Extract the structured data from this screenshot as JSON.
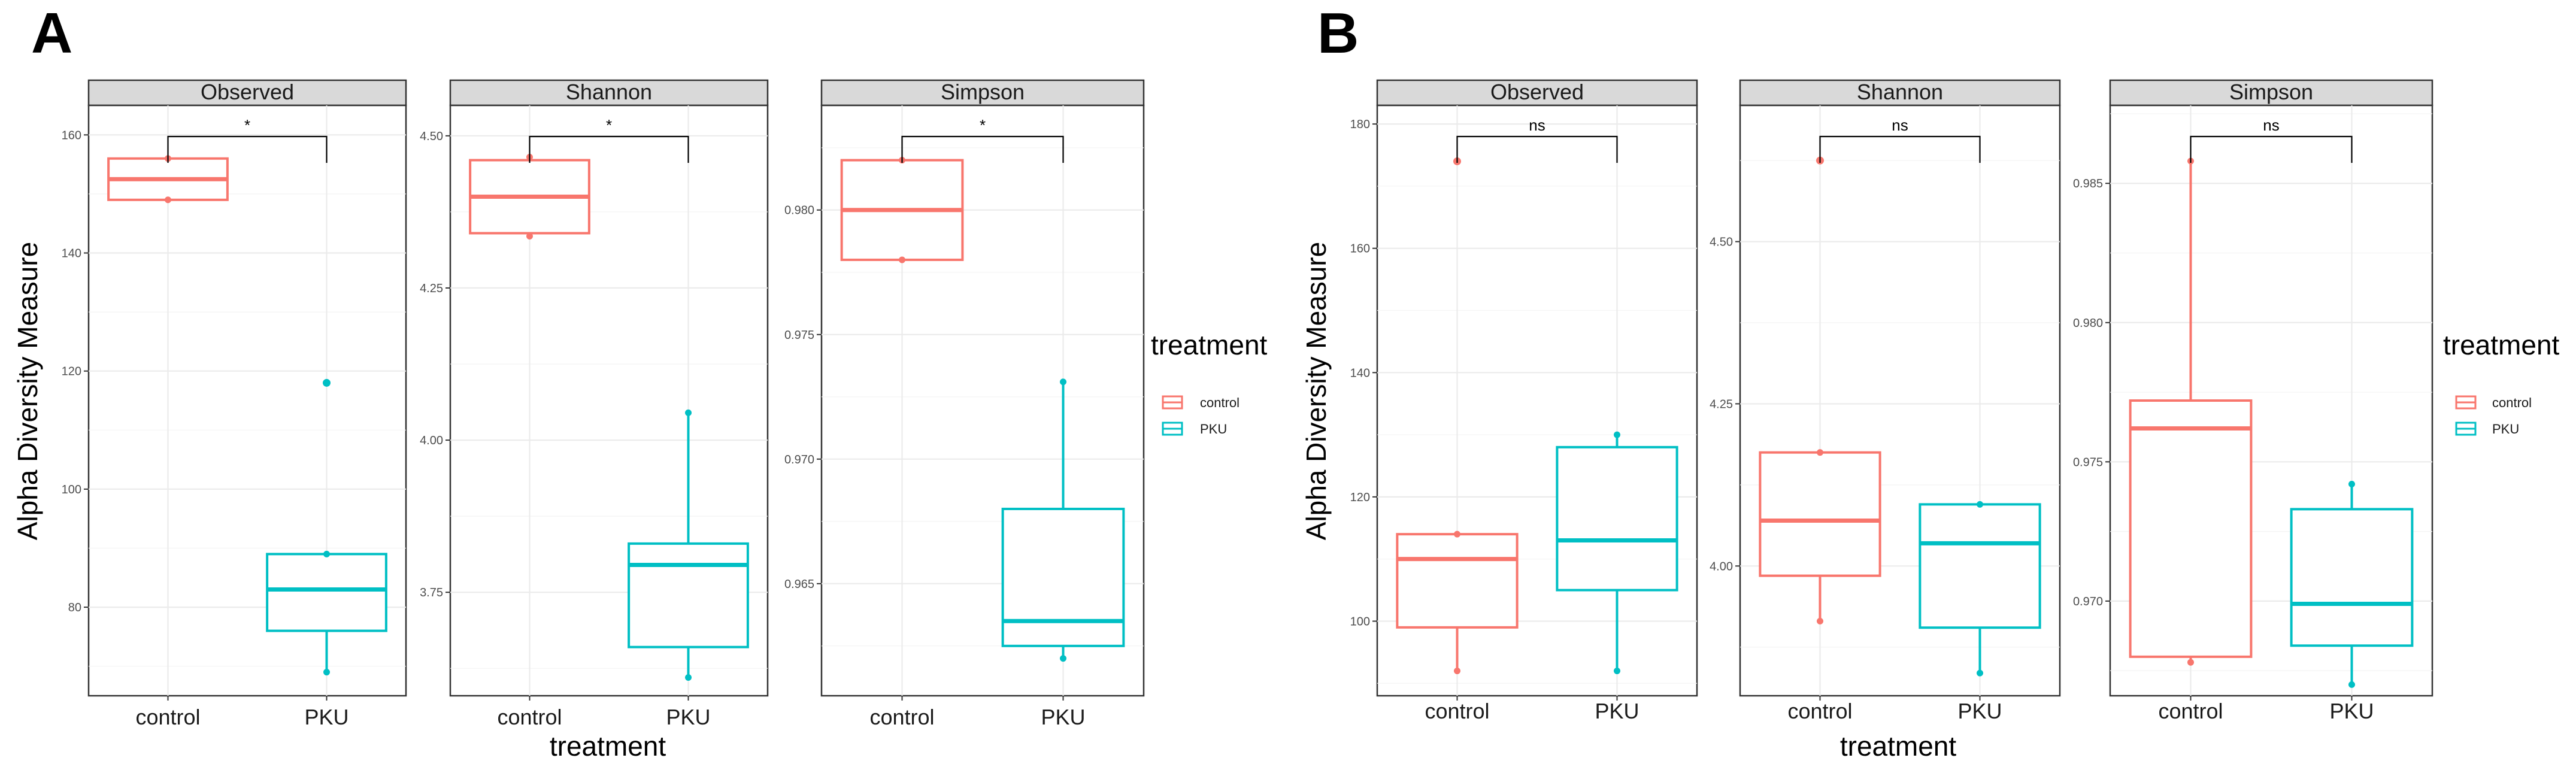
{
  "colors": {
    "control": "#F8766D",
    "PKU": "#00BFC4"
  },
  "chart_data": [
    {
      "panel": "A",
      "type": "boxplot",
      "ylabel": "Alpha Diversity Measure",
      "xlabel": "treatment",
      "categories": [
        "control",
        "PKU"
      ],
      "legend": {
        "title": "treatment",
        "entries": [
          "control",
          "PKU"
        ],
        "position": "right"
      },
      "grid": true,
      "facets": [
        {
          "name": "Observed",
          "ylim": [
            65,
            165
          ],
          "yticks": [
            80,
            100,
            120,
            140,
            160
          ],
          "ytick_labels": [
            "80",
            "100",
            "120",
            "140",
            "160"
          ],
          "significance": "*",
          "boxes": [
            {
              "group": "control",
              "min": 149,
              "q1": 149,
              "median": 152.5,
              "q3": 156,
              "max": 156,
              "outliers": []
            },
            {
              "group": "PKU",
              "min": 69,
              "q1": 76,
              "median": 83,
              "q3": 89,
              "max": 89,
              "outliers": [
                118
              ]
            }
          ]
        },
        {
          "name": "Shannon",
          "ylim": [
            3.58,
            4.55
          ],
          "yticks": [
            3.75,
            4.0,
            4.25,
            4.5
          ],
          "ytick_labels": [
            "3.75",
            "4.00",
            "4.25",
            "4.50"
          ],
          "significance": "*",
          "boxes": [
            {
              "group": "control",
              "min": 4.335,
              "q1": 4.34,
              "median": 4.4,
              "q3": 4.46,
              "max": 4.465,
              "outliers": []
            },
            {
              "group": "PKU",
              "min": 3.61,
              "q1": 3.66,
              "median": 3.795,
              "q3": 3.83,
              "max": 4.045,
              "outliers": []
            }
          ]
        },
        {
          "name": "Simpson",
          "ylim": [
            0.9605,
            0.9842
          ],
          "yticks": [
            0.965,
            0.97,
            0.975,
            0.98
          ],
          "ytick_labels": [
            "0.965",
            "0.970",
            "0.975",
            "0.980"
          ],
          "significance": "*",
          "boxes": [
            {
              "group": "control",
              "min": 0.978,
              "q1": 0.978,
              "median": 0.98,
              "q3": 0.982,
              "max": 0.982,
              "outliers": []
            },
            {
              "group": "PKU",
              "min": 0.962,
              "q1": 0.9625,
              "median": 0.9635,
              "q3": 0.968,
              "max": 0.9731,
              "outliers": []
            }
          ]
        }
      ]
    },
    {
      "panel": "B",
      "type": "boxplot",
      "ylabel": "Alpha Diversity Measure",
      "xlabel": "treatment",
      "categories": [
        "control",
        "PKU"
      ],
      "legend": {
        "title": "treatment",
        "entries": [
          "control",
          "PKU"
        ],
        "position": "right"
      },
      "grid": true,
      "facets": [
        {
          "name": "Observed",
          "ylim": [
            88,
            183
          ],
          "yticks": [
            100,
            120,
            140,
            160,
            180
          ],
          "ytick_labels": [
            "100",
            "120",
            "140",
            "160",
            "180"
          ],
          "significance": "ns",
          "boxes": [
            {
              "group": "control",
              "min": 92,
              "q1": 99,
              "median": 110,
              "q3": 114,
              "max": 114,
              "outliers": [
                174
              ]
            },
            {
              "group": "PKU",
              "min": 92,
              "q1": 105,
              "median": 113,
              "q3": 128,
              "max": 130,
              "outliers": []
            }
          ]
        },
        {
          "name": "Shannon",
          "ylim": [
            3.8,
            4.71
          ],
          "yticks": [
            4.0,
            4.25,
            4.5
          ],
          "ytick_labels": [
            "4.00",
            "4.25",
            "4.50"
          ],
          "significance": "ns",
          "boxes": [
            {
              "group": "control",
              "min": 3.915,
              "q1": 3.985,
              "median": 4.07,
              "q3": 4.175,
              "max": 4.175,
              "outliers": [
                4.625
              ]
            },
            {
              "group": "PKU",
              "min": 3.835,
              "q1": 3.905,
              "median": 4.035,
              "q3": 4.095,
              "max": 4.095,
              "outliers": []
            }
          ]
        },
        {
          "name": "Simpson",
          "ylim": [
            0.9666,
            0.9878
          ],
          "yticks": [
            0.97,
            0.975,
            0.98,
            0.985
          ],
          "ytick_labels": [
            "0.970",
            "0.975",
            "0.980",
            "0.985"
          ],
          "significance": "ns",
          "boxes": [
            {
              "group": "control",
              "min": 0.9678,
              "q1": 0.968,
              "median": 0.9762,
              "q3": 0.9772,
              "max": 0.9858,
              "outliers": []
            },
            {
              "group": "PKU",
              "min": 0.967,
              "q1": 0.9684,
              "median": 0.9699,
              "q3": 0.9733,
              "max": 0.9742,
              "outliers": []
            }
          ]
        }
      ]
    }
  ]
}
